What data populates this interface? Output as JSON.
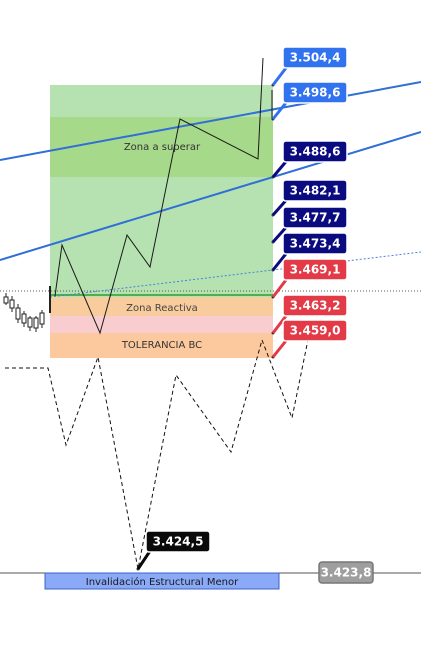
{
  "chart_data": {
    "type": "candlestick-annotated",
    "zones": [
      {
        "name": "zona-superar",
        "label": "Zona a superar",
        "top": 3.501,
        "bottom": 3.47,
        "color": "#b5e2b0"
      },
      {
        "name": "zona-superar-band",
        "label": "",
        "top": 3.495,
        "bottom": 3.4895,
        "color": "#a7d98a"
      },
      {
        "name": "zona-reactiva",
        "label": "Zona Reactiva",
        "top": 3.4682,
        "bottom": 3.4652,
        "color": "#f9cc9e"
      },
      {
        "name": "zona-pink",
        "label": "",
        "top": 3.4652,
        "bottom": 3.4622,
        "color": "#f9cdd0"
      },
      {
        "name": "tolerancia-bc",
        "label": "TOLERANCIA BC",
        "top": 3.4622,
        "bottom": 3.4582,
        "color": "#fcc99e"
      },
      {
        "name": "invalidacion",
        "label": "Invalidación Estructural Menor",
        "top": 3.4237,
        "bottom": 3.4218,
        "color": "#8aa9f6"
      }
    ],
    "price_labels": [
      {
        "value": "3.504,4",
        "style": "blue"
      },
      {
        "value": "3.498,6",
        "style": "blue"
      },
      {
        "value": "3.488,6",
        "style": "navy"
      },
      {
        "value": "3.482,1",
        "style": "navy"
      },
      {
        "value": "3.477,7",
        "style": "navy"
      },
      {
        "value": "3.473,4",
        "style": "navy"
      },
      {
        "value": "3.469,1",
        "style": "red"
      },
      {
        "value": "3.463,2",
        "style": "red"
      },
      {
        "value": "3.459,0",
        "style": "red"
      },
      {
        "value": "3.424,5",
        "style": "black"
      },
      {
        "value": "3.423,8",
        "style": "gray"
      }
    ],
    "trend_lines": [
      {
        "name": "upper-trendline",
        "color": "#2f6fd6"
      },
      {
        "name": "lower-trendline",
        "color": "#2f6fd6"
      },
      {
        "name": "dotted-trendline",
        "color": "#4a7ee0"
      }
    ],
    "colors": {
      "blue": "#3172ee",
      "navy": "#0b0b80",
      "red": "#e23a46",
      "black": "#0a0a0a",
      "gray": "#9e9e9e"
    }
  }
}
